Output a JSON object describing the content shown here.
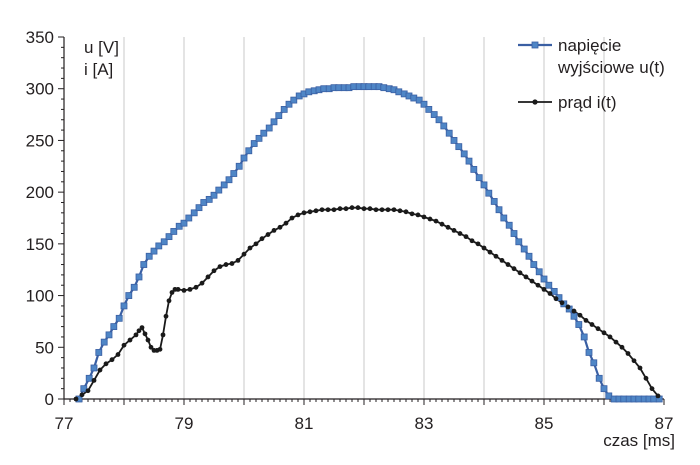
{
  "chart_data": {
    "type": "line",
    "ylabel_lines": [
      "u [V]",
      "i  [A]"
    ],
    "xlabel": "czas [ms]",
    "xlim": [
      77,
      87
    ],
    "ylim": [
      0,
      350
    ],
    "x_ticks": [
      77,
      79,
      81,
      83,
      85,
      87
    ],
    "y_ticks": [
      0,
      50,
      100,
      150,
      200,
      250,
      300,
      350
    ],
    "grid": {
      "vertical": true,
      "horizontal": false,
      "vertical_step_ms": 1
    },
    "legend_position": "top-right",
    "colors": {
      "voltage_line": "#3a5fa3",
      "voltage_marker": "#4f86c6",
      "current": "#1a1a1a",
      "grid": "#c8c8c8",
      "axis": "#231f20"
    },
    "series": [
      {
        "name_lines": [
          "napięcie",
          "wyjściowe u(t)"
        ],
        "marker": "square",
        "x": [
          77.25,
          77.33,
          77.42,
          77.5,
          77.58,
          77.67,
          77.75,
          77.83,
          77.92,
          78.0,
          78.08,
          78.17,
          78.25,
          78.33,
          78.42,
          78.5,
          78.58,
          78.67,
          78.75,
          78.83,
          78.92,
          79.0,
          79.08,
          79.17,
          79.25,
          79.33,
          79.42,
          79.5,
          79.58,
          79.67,
          79.75,
          79.83,
          79.92,
          80.0,
          80.08,
          80.17,
          80.25,
          80.33,
          80.42,
          80.5,
          80.58,
          80.67,
          80.75,
          80.83,
          80.92,
          81.0,
          81.08,
          81.17,
          81.25,
          81.33,
          81.42,
          81.5,
          81.58,
          81.67,
          81.75,
          81.83,
          81.92,
          82.0,
          82.08,
          82.17,
          82.25,
          82.33,
          82.42,
          82.5,
          82.58,
          82.67,
          82.75,
          82.83,
          82.92,
          83.0,
          83.08,
          83.17,
          83.25,
          83.33,
          83.42,
          83.5,
          83.58,
          83.67,
          83.75,
          83.83,
          83.92,
          84.0,
          84.08,
          84.17,
          84.25,
          84.33,
          84.42,
          84.5,
          84.58,
          84.67,
          84.75,
          84.83,
          84.92,
          85.0,
          85.08,
          85.17,
          85.25,
          85.33,
          85.42,
          85.5,
          85.58,
          85.67,
          85.75,
          85.83,
          85.92,
          86.0,
          86.08,
          86.17,
          86.25,
          86.33,
          86.42,
          86.5,
          86.58,
          86.67,
          86.75,
          86.83,
          86.92
        ],
        "y": [
          0,
          10,
          20,
          30,
          45,
          55,
          62,
          70,
          78,
          90,
          100,
          108,
          118,
          130,
          138,
          143,
          148,
          152,
          157,
          162,
          167,
          170,
          175,
          180,
          185,
          190,
          193,
          197,
          202,
          207,
          212,
          218,
          225,
          233,
          240,
          247,
          252,
          257,
          262,
          268,
          274,
          280,
          285,
          289,
          293,
          295,
          297,
          298,
          299,
          300,
          300,
          301,
          301,
          301,
          301,
          302,
          302,
          302,
          302,
          302,
          302,
          301,
          300,
          299,
          297,
          295,
          293,
          291,
          289,
          285,
          280,
          275,
          270,
          264,
          257,
          250,
          244,
          237,
          230,
          222,
          214,
          207,
          199,
          191,
          183,
          175,
          168,
          160,
          152,
          145,
          138,
          130,
          123,
          116,
          110,
          104,
          98,
          92,
          87,
          80,
          72,
          60,
          45,
          35,
          20,
          10,
          3,
          0,
          0,
          0,
          0,
          0,
          0,
          0,
          0,
          0,
          0
        ]
      },
      {
        "name_lines": [
          "prąd i(t)"
        ],
        "marker": "circle",
        "x": [
          77.2,
          77.3,
          77.4,
          77.5,
          77.6,
          77.7,
          77.8,
          77.9,
          78.0,
          78.1,
          78.2,
          78.25,
          78.3,
          78.35,
          78.4,
          78.45,
          78.5,
          78.55,
          78.6,
          78.65,
          78.7,
          78.75,
          78.8,
          78.85,
          78.9,
          79.0,
          79.1,
          79.2,
          79.3,
          79.4,
          79.5,
          79.6,
          79.7,
          79.8,
          79.9,
          80.0,
          80.1,
          80.2,
          80.3,
          80.4,
          80.5,
          80.6,
          80.7,
          80.8,
          80.9,
          81.0,
          81.1,
          81.2,
          81.3,
          81.4,
          81.5,
          81.6,
          81.7,
          81.8,
          81.9,
          82.0,
          82.1,
          82.2,
          82.3,
          82.4,
          82.5,
          82.6,
          82.7,
          82.8,
          82.9,
          83.0,
          83.1,
          83.2,
          83.3,
          83.4,
          83.5,
          83.6,
          83.7,
          83.8,
          83.9,
          84.0,
          84.1,
          84.2,
          84.3,
          84.4,
          84.5,
          84.6,
          84.7,
          84.8,
          84.9,
          85.0,
          85.1,
          85.2,
          85.3,
          85.4,
          85.5,
          85.6,
          85.7,
          85.8,
          85.9,
          86.0,
          86.1,
          86.2,
          86.3,
          86.4,
          86.5,
          86.6,
          86.7,
          86.8,
          86.9
        ],
        "y": [
          0,
          4,
          8,
          18,
          28,
          34,
          38,
          43,
          52,
          57,
          62,
          66,
          69,
          63,
          57,
          50,
          47,
          47,
          48,
          62,
          80,
          95,
          103,
          106,
          106,
          105,
          106,
          108,
          112,
          118,
          124,
          128,
          130,
          131,
          134,
          140,
          146,
          150,
          155,
          159,
          163,
          166,
          170,
          175,
          178,
          180,
          181,
          182,
          183,
          183,
          183,
          184,
          184,
          185,
          185,
          184,
          184,
          183,
          183,
          183,
          183,
          182,
          181,
          179,
          178,
          176,
          174,
          172,
          169,
          166,
          163,
          160,
          157,
          153,
          150,
          146,
          142,
          138,
          134,
          130,
          126,
          122,
          118,
          114,
          110,
          106,
          102,
          97,
          93,
          89,
          85,
          81,
          76,
          72,
          68,
          64,
          60,
          55,
          50,
          44,
          37,
          30,
          20,
          10,
          3
        ]
      }
    ]
  }
}
